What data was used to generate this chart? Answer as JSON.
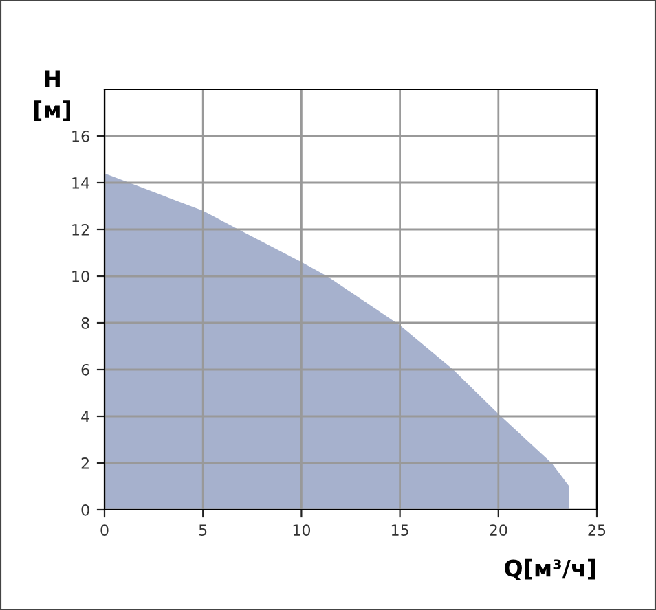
{
  "chart_data": {
    "type": "area",
    "ylabel": "H\n[м]",
    "xlabel": "Q[м³/ч]",
    "x": [
      0,
      2.5,
      5,
      6.8,
      10,
      11.3,
      15,
      17.7,
      20,
      22.7,
      23.6,
      23.6
    ],
    "series": [
      {
        "color": "#a6b1cd",
        "values": [
          14.4,
          13.6,
          12.8,
          12.0,
          10.6,
          10.0,
          7.9,
          6.0,
          4.1,
          2.0,
          1.0,
          0
        ]
      }
    ],
    "xlim": [
      0,
      25
    ],
    "xticks": [
      0,
      5,
      10,
      15,
      20,
      25
    ],
    "ylim": [
      0,
      18
    ],
    "yticks": [
      0,
      2,
      4,
      6,
      8,
      10,
      12,
      14,
      16
    ],
    "grid": true,
    "legend": false
  }
}
